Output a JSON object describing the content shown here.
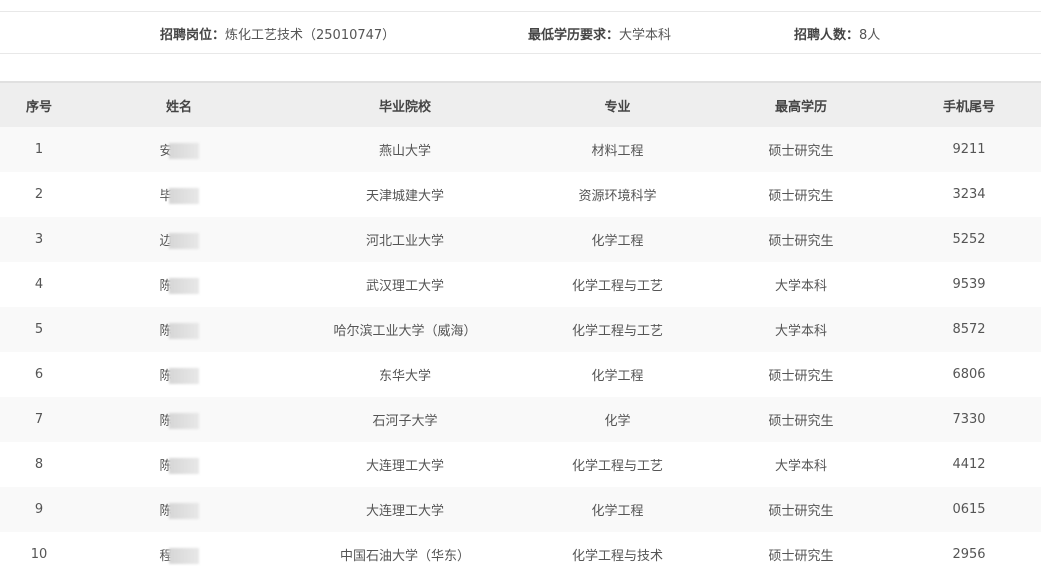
{
  "info": {
    "position_label": "招聘岗位：",
    "position_value": "炼化工艺技术（25010747）",
    "education_label": "最低学历要求：",
    "education_value": "大学本科",
    "count_label": "招聘人数：",
    "count_value": "8人"
  },
  "table": {
    "headers": [
      "序号",
      "姓名",
      "毕业院校",
      "专业",
      "最高学历",
      "手机尾号"
    ],
    "rows": [
      {
        "no": "1",
        "name": "安",
        "school": "燕山大学",
        "major": "材料工程",
        "degree": "硕士研究生",
        "phone": "9211"
      },
      {
        "no": "2",
        "name": "毕",
        "school": "天津城建大学",
        "major": "资源环境科学",
        "degree": "硕士研究生",
        "phone": "3234"
      },
      {
        "no": "3",
        "name": "边",
        "school": "河北工业大学",
        "major": "化学工程",
        "degree": "硕士研究生",
        "phone": "5252"
      },
      {
        "no": "4",
        "name": "陈",
        "school": "武汉理工大学",
        "major": "化学工程与工艺",
        "degree": "大学本科",
        "phone": "9539"
      },
      {
        "no": "5",
        "name": "陈",
        "school": "哈尔滨工业大学（威海）",
        "major": "化学工程与工艺",
        "degree": "大学本科",
        "phone": "8572"
      },
      {
        "no": "6",
        "name": "陈",
        "school": "东华大学",
        "major": "化学工程",
        "degree": "硕士研究生",
        "phone": "6806"
      },
      {
        "no": "7",
        "name": "陈",
        "school": "石河子大学",
        "major": "化学",
        "degree": "硕士研究生",
        "phone": "7330"
      },
      {
        "no": "8",
        "name": "陈",
        "school": "大连理工大学",
        "major": "化学工程与工艺",
        "degree": "大学本科",
        "phone": "4412"
      },
      {
        "no": "9",
        "name": "陈",
        "school": "大连理工大学",
        "major": "化学工程",
        "degree": "硕士研究生",
        "phone": "0615"
      },
      {
        "no": "10",
        "name": "程",
        "school": "中国石油大学（华东）",
        "major": "化学工程与技术",
        "degree": "硕士研究生",
        "phone": "2956"
      }
    ]
  }
}
